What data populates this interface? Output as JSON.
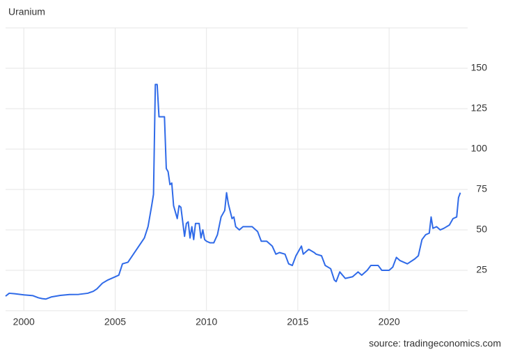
{
  "chart_data": {
    "type": "line",
    "title": "Uranium",
    "source": "source: tradingeconomics.com",
    "x": [
      1999.0,
      1999.2,
      1999.5,
      2000.0,
      2000.5,
      2000.8,
      2001.0,
      2001.2,
      2001.5,
      2002.0,
      2002.5,
      2003.0,
      2003.5,
      2003.8,
      2004.0,
      2004.3,
      2004.6,
      2005.0,
      2005.2,
      2005.4,
      2005.7,
      2006.0,
      2006.3,
      2006.6,
      2006.8,
      2007.0,
      2007.1,
      2007.2,
      2007.3,
      2007.4,
      2007.7,
      2007.8,
      2007.9,
      2008.0,
      2008.1,
      2008.2,
      2008.4,
      2008.5,
      2008.6,
      2008.8,
      2008.9,
      2009.0,
      2009.1,
      2009.2,
      2009.3,
      2009.4,
      2009.6,
      2009.7,
      2009.8,
      2009.9,
      2010.0,
      2010.2,
      2010.4,
      2010.6,
      2010.8,
      2011.0,
      2011.1,
      2011.2,
      2011.4,
      2011.5,
      2011.6,
      2011.8,
      2012.0,
      2012.5,
      2012.8,
      2013.0,
      2013.3,
      2013.6,
      2013.8,
      2014.0,
      2014.3,
      2014.5,
      2014.7,
      2014.9,
      2015.0,
      2015.2,
      2015.3,
      2015.6,
      2015.9,
      2016.0,
      2016.3,
      2016.5,
      2016.8,
      2017.0,
      2017.1,
      2017.3,
      2017.6,
      2018.0,
      2018.3,
      2018.5,
      2018.8,
      2019.0,
      2019.4,
      2019.6,
      2020.0,
      2020.2,
      2020.4,
      2020.6,
      2021.0,
      2021.4,
      2021.6,
      2021.8,
      2022.0,
      2022.2,
      2022.3,
      2022.4,
      2022.6,
      2022.8,
      2023.0,
      2023.3,
      2023.5,
      2023.7,
      2023.8,
      2023.9
    ],
    "series": [
      {
        "name": "Uranium",
        "color": "#2f6ae8",
        "values": [
          9,
          10.8,
          10.5,
          9.8,
          9.3,
          8,
          7.5,
          7.2,
          8.5,
          9.5,
          10,
          10.1,
          10.8,
          12,
          13.5,
          17,
          19,
          21,
          22,
          29,
          30,
          35,
          40,
          45,
          52,
          65,
          72,
          140,
          140,
          120,
          120,
          88,
          86,
          78,
          79,
          65,
          57,
          65,
          64,
          46,
          54,
          55,
          45,
          52,
          44,
          54,
          54,
          45,
          50,
          44,
          43,
          42,
          42,
          47,
          58,
          62,
          73,
          66,
          57,
          58,
          52,
          50,
          52,
          52,
          49,
          43,
          43,
          40,
          35,
          36,
          35,
          29,
          28,
          34,
          36,
          40,
          35,
          38,
          36,
          35,
          34,
          28,
          26,
          19,
          18,
          24,
          20,
          21,
          24,
          22,
          25,
          28,
          28,
          25,
          25,
          27,
          33,
          31,
          29,
          32,
          34,
          44,
          47,
          48,
          58,
          51,
          52,
          50,
          51,
          53,
          57,
          58,
          70,
          73
        ]
      }
    ],
    "xlim": [
      1999,
      2024.3
    ],
    "ylim": [
      0,
      175
    ],
    "xticks": [
      2000,
      2005,
      2010,
      2015,
      2020
    ],
    "yticks": [
      25,
      50,
      75,
      100,
      125,
      150
    ],
    "grid": true
  }
}
